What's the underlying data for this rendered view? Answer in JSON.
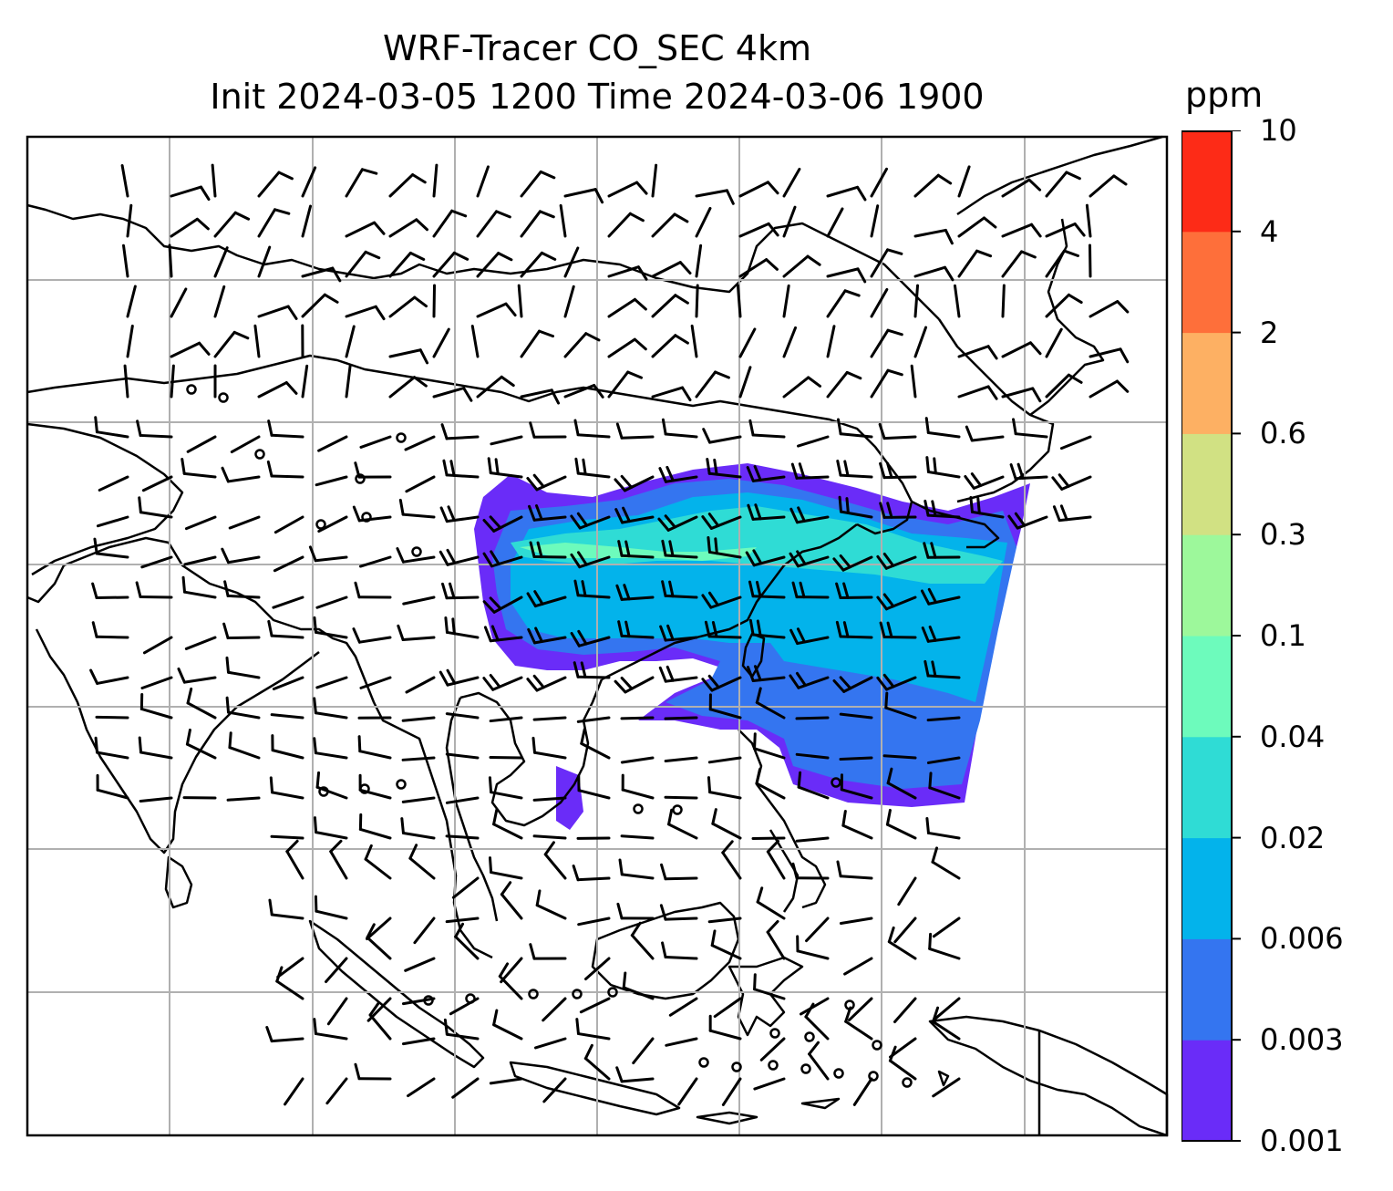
{
  "title": {
    "line1": "WRF-Tracer CO_SEC 4km",
    "line2": "Init 2024-03-05 1200 Time 2024-03-06 1900"
  },
  "colorbar": {
    "unit": "ppm",
    "levels": [
      "0.001",
      "0.003",
      "0.006",
      "0.02",
      "0.04",
      "0.1",
      "0.3",
      "0.6",
      "2",
      "4",
      "10"
    ],
    "colors": [
      "#6a2cf8",
      "#3475f0",
      "#03b3eb",
      "#2fdcd5",
      "#6dfbbc",
      "#9df89b",
      "#d1e183",
      "#fdb063",
      "#fe6f3a",
      "#fd2b17"
    ]
  },
  "map": {
    "land_outline_color": "#000000",
    "grid_color": "#b0b0b0",
    "wind_barb_color": "#000000",
    "calm_symbol": "circle"
  }
}
